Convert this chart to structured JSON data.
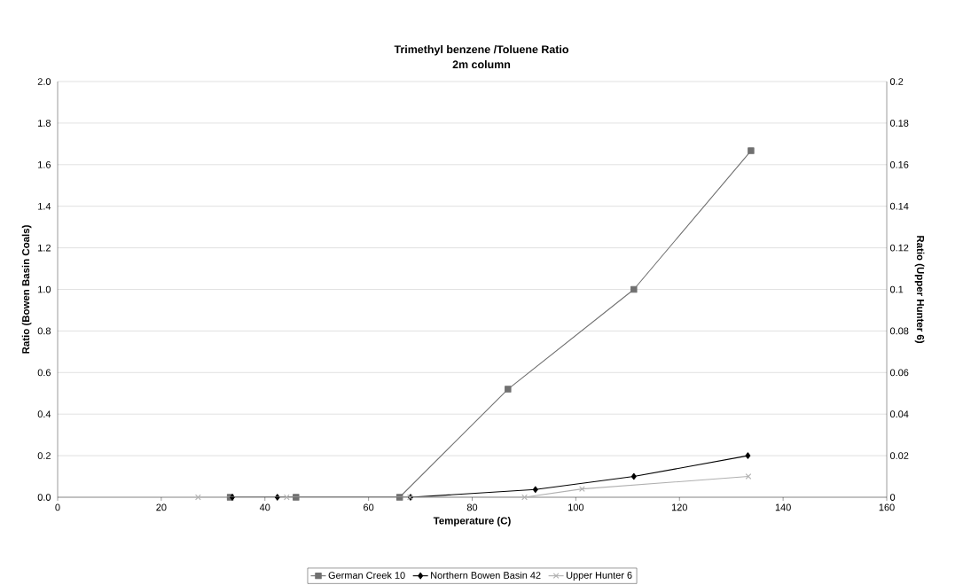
{
  "chart_data": {
    "type": "line",
    "title": "Trimethyl benzene /Toluene Ratio",
    "subtitle": "2m column",
    "xlabel": "Temperature (C)",
    "ylabel": "Ratio (Bowen Basin Coals)",
    "y2label": "Ratio (Upper Hunter 6)",
    "series": [
      {
        "name": "German Creek 10",
        "color": "#707070",
        "marker": "square",
        "x": [
          33.3,
          46,
          66,
          86.9,
          111.2,
          133.8
        ],
        "values": [
          0,
          0,
          0,
          0.52,
          1.0,
          1.667
        ]
      },
      {
        "name": "Northern Bowen Basin 42",
        "color": "#000000",
        "marker": "diamond",
        "x": [
          33.7,
          42.4,
          68.1,
          92.2,
          111.2,
          133.2
        ],
        "values": [
          0,
          0,
          0,
          0.037,
          0.1,
          0.2
        ]
      },
      {
        "name": "Upper Hunter 6",
        "color": "#b0b0b0",
        "marker": "cross",
        "axis": "y2",
        "x": [
          27.1,
          44.2,
          68,
          90.1,
          101.2,
          133.3
        ],
        "values": [
          0,
          0,
          0,
          0,
          0.004,
          0.01
        ]
      }
    ],
    "xlim": [
      0,
      160
    ],
    "xticks": [
      0,
      20,
      40,
      60,
      80,
      100,
      120,
      140,
      160
    ],
    "ylim": [
      0,
      2.0
    ],
    "yticks": [
      {
        "value": 0,
        "label": "0.0"
      },
      {
        "value": 0.2,
        "label": "0.2"
      },
      {
        "value": 0.4,
        "label": "0.4"
      },
      {
        "value": 0.6,
        "label": "0.6"
      },
      {
        "value": 0.8,
        "label": "0.8"
      },
      {
        "value": 1.0,
        "label": "1.0"
      },
      {
        "value": 1.2,
        "label": "1.2"
      },
      {
        "value": 1.4,
        "label": "1.4"
      },
      {
        "value": 1.6,
        "label": "1.6"
      },
      {
        "value": 1.8,
        "label": "1.8"
      },
      {
        "value": 2.0,
        "label": "2.0"
      }
    ],
    "y2lim": [
      0,
      0.2
    ],
    "y2ticks": [
      0,
      0.02,
      0.04,
      0.06,
      0.08,
      0.1,
      0.12,
      0.14,
      0.16,
      0.18,
      0.2
    ],
    "grid": "y",
    "legend": "bottom",
    "line_style": "solid"
  }
}
